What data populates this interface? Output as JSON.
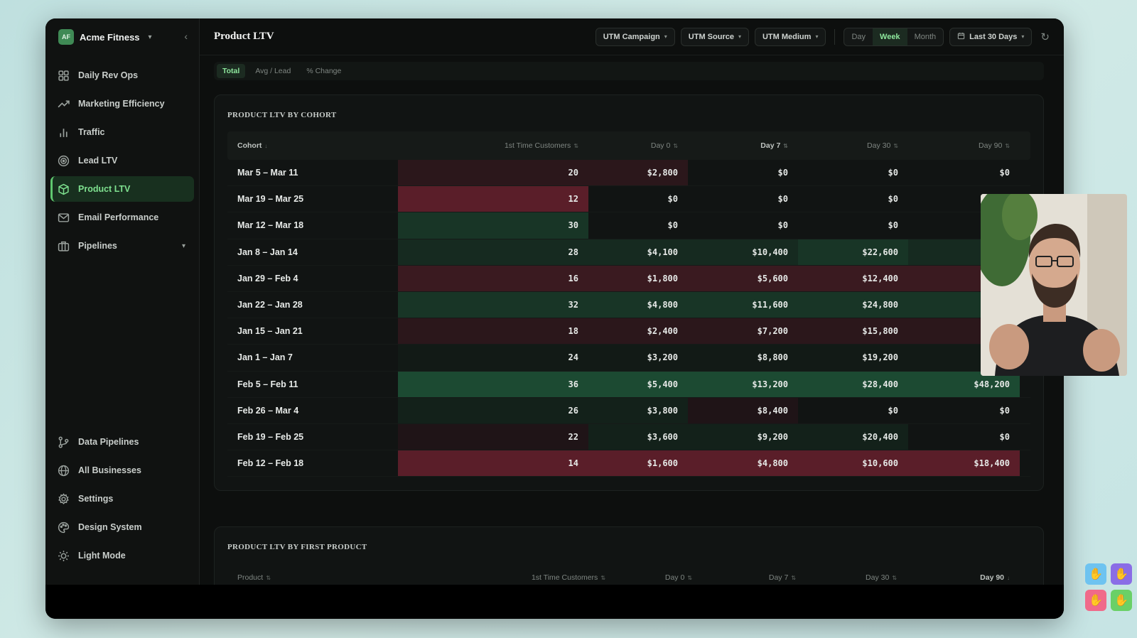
{
  "brand": {
    "initials": "AF",
    "name": "Acme Fitness"
  },
  "nav": {
    "items": [
      {
        "label": "Daily Rev Ops",
        "icon": "dashboard-grid-icon",
        "active": false
      },
      {
        "label": "Marketing Efficiency",
        "icon": "trend-up-icon",
        "active": false
      },
      {
        "label": "Traffic",
        "icon": "bar-chart-icon",
        "active": false
      },
      {
        "label": "Lead LTV",
        "icon": "target-icon",
        "active": false
      },
      {
        "label": "Product LTV",
        "icon": "box-icon",
        "active": true
      },
      {
        "label": "Email Performance",
        "icon": "mail-icon",
        "active": false
      },
      {
        "label": "Pipelines",
        "icon": "briefcase-icon",
        "active": false
      }
    ],
    "bottom_items": [
      {
        "label": "Data Pipelines",
        "icon": "pipeline-icon"
      },
      {
        "label": "All Businesses",
        "icon": "globe-icon"
      },
      {
        "label": "Settings",
        "icon": "gear-icon"
      },
      {
        "label": "Design System",
        "icon": "palette-icon"
      },
      {
        "label": "Light Mode",
        "icon": "sun-icon"
      }
    ]
  },
  "header": {
    "title": "Product LTV",
    "filters": [
      "UTM Campaign",
      "UTM Source",
      "UTM Medium"
    ],
    "periods": [
      "Day",
      "Week",
      "Month"
    ],
    "active_period": "Week",
    "date_range": "Last 30 Days"
  },
  "subtabs": {
    "items": [
      "Total",
      "Avg / Lead",
      "% Change"
    ],
    "active": "Total"
  },
  "cohort_table": {
    "title": "PRODUCT LTV BY COHORT",
    "columns": [
      "Cohort",
      "1st Time Customers",
      "Day 0",
      "Day 7",
      "Day 30",
      "Day 90"
    ],
    "rows": [
      {
        "label": "Mar 5 – Mar 11",
        "values": [
          "20",
          "$2,800",
          "$0",
          "$0",
          "$0"
        ],
        "heat": [
          "red1",
          "red1",
          "none",
          "none",
          "none"
        ]
      },
      {
        "label": "Mar 19 – Mar 25",
        "values": [
          "12",
          "$0",
          "$0",
          "$0",
          "$0"
        ],
        "heat": [
          "red3",
          "none",
          "none",
          "none",
          "none"
        ]
      },
      {
        "label": "Mar 12 – Mar 18",
        "values": [
          "30",
          "$0",
          "$0",
          "$0",
          "$0"
        ],
        "heat": [
          "green2",
          "none",
          "none",
          "none",
          "none"
        ]
      },
      {
        "label": "Jan 8 – Jan 14",
        "values": [
          "28",
          "$4,100",
          "$10,400",
          "$22,600",
          ""
        ],
        "heat": [
          "green1",
          "green1",
          "green1",
          "green2",
          "green1"
        ]
      },
      {
        "label": "Jan 29 – Feb 4",
        "values": [
          "16",
          "$1,800",
          "$5,600",
          "$12,400",
          ""
        ],
        "heat": [
          "red2",
          "red2",
          "red2",
          "red2",
          "red2"
        ]
      },
      {
        "label": "Jan 22 – Jan 28",
        "values": [
          "32",
          "$4,800",
          "$11,600",
          "$24,800",
          ""
        ],
        "heat": [
          "green2",
          "green2",
          "green2",
          "green2",
          "green2"
        ]
      },
      {
        "label": "Jan 15 – Jan 21",
        "values": [
          "18",
          "$2,400",
          "$7,200",
          "$15,800",
          ""
        ],
        "heat": [
          "red1",
          "red1",
          "red1",
          "red1",
          "red1"
        ]
      },
      {
        "label": "Jan 1 – Jan 7",
        "values": [
          "24",
          "$3,200",
          "$8,800",
          "$19,200",
          ""
        ],
        "heat": [
          "dim",
          "dim",
          "dim",
          "dim",
          "dim"
        ]
      },
      {
        "label": "Feb 5 – Feb 11",
        "values": [
          "36",
          "$5,400",
          "$13,200",
          "$28,400",
          "$48,200"
        ],
        "heat": [
          "green3",
          "green3",
          "green3",
          "green3",
          "green3"
        ]
      },
      {
        "label": "Feb 26 – Mar 4",
        "values": [
          "26",
          "$3,800",
          "$8,400",
          "$0",
          "$0"
        ],
        "heat": [
          "green0",
          "green0",
          "red0",
          "none",
          "none"
        ]
      },
      {
        "label": "Feb 19 – Feb 25",
        "values": [
          "22",
          "$3,600",
          "$9,200",
          "$20,400",
          "$0"
        ],
        "heat": [
          "red0",
          "green0",
          "green0",
          "green0",
          "none"
        ]
      },
      {
        "label": "Feb 12 – Feb 18",
        "values": [
          "14",
          "$1,600",
          "$4,800",
          "$10,600",
          "$18,400"
        ],
        "heat": [
          "red3",
          "red3",
          "red3",
          "red3",
          "red3"
        ]
      }
    ]
  },
  "product_table": {
    "title": "PRODUCT LTV BY FIRST PRODUCT",
    "columns": [
      "Product",
      "1st Time Customers",
      "Day 0",
      "Day 7",
      "Day 30",
      "Day 90"
    ]
  },
  "colors": {
    "accent": "#5fc76f",
    "none": "transparent",
    "dim": "#121a16",
    "green0": "#13211a",
    "green1": "#162a20",
    "green2": "#183526",
    "green3": "#1c4a32",
    "red0": "#1f1417",
    "red1": "#2b171b",
    "red2": "#3a1a20",
    "red3": "#5a1e29"
  },
  "tray": {
    "icons": [
      "hand-wave-icon",
      "hand-wave-icon",
      "hand-wave-icon",
      "hand-wave-icon"
    ],
    "colors": [
      "#6ec3f0",
      "#8a6de6",
      "#f06a8a",
      "#6ad067"
    ]
  }
}
